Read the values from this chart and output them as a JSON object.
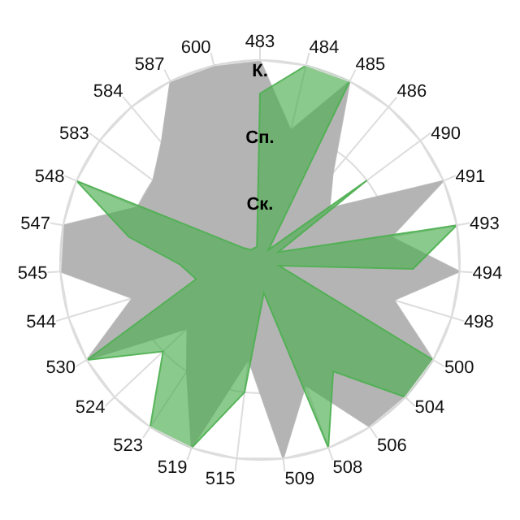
{
  "chart_data": {
    "type": "radar",
    "categories": [
      "483",
      "484",
      "485",
      "486",
      "490",
      "491",
      "493",
      "494",
      "498",
      "500",
      "504",
      "506",
      "508",
      "509",
      "515",
      "519",
      "523",
      "524",
      "530",
      "544",
      "545",
      "547",
      "548",
      "583",
      "584",
      "587",
      "600"
    ],
    "series": [
      {
        "color": "#b4b4b4",
        "values": [
          3,
          2,
          3,
          1.7,
          1.3,
          3,
          2,
          3,
          2.1,
          3,
          3,
          3,
          2,
          3,
          1.5,
          3,
          2,
          1.5,
          3,
          2,
          3,
          3,
          2,
          2,
          2.3,
          3,
          3
        ]
      },
      {
        "color": "#4caf50",
        "values": [
          2.5,
          3,
          3,
          0.2,
          2,
          0.3,
          3,
          2.3,
          0.3,
          3,
          3,
          2,
          3,
          0.5,
          2,
          3,
          3,
          2,
          3,
          1,
          1.2,
          2,
          3,
          0.3,
          0.2,
          0.2,
          0.2
        ]
      }
    ],
    "ylim": [
      0,
      3
    ],
    "yticks": [
      {
        "value": 1,
        "label": "Ск."
      },
      {
        "value": 2,
        "label": "Сп."
      },
      {
        "value": 3,
        "label": "К."
      }
    ],
    "grid": true
  }
}
